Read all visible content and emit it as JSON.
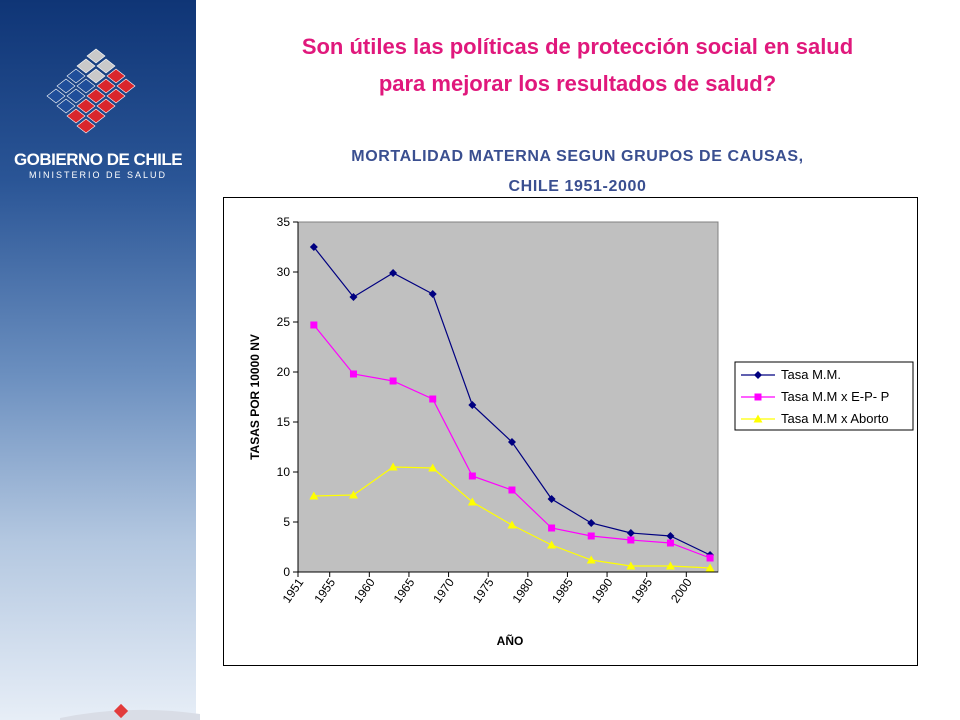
{
  "branding": {
    "government": "GOBIERNO DE CHILE",
    "ministry": "MINISTERIO DE SALUD"
  },
  "title": {
    "line1": "Son útiles las políticas de protección social en salud",
    "line2": "para mejorar los resultados de salud?"
  },
  "colors": {
    "title": "#e0187c",
    "chart_title": "#3a4f90",
    "plot_background": "#c0c0c0"
  },
  "chart_data": {
    "type": "line",
    "title_line1": "MORTALIDAD MATERNA SEGUN GRUPOS DE CAUSAS,",
    "title_line2": "CHILE 1951-2000",
    "xlabel": "AÑO",
    "ylabel": "TASAS POR 10000 NV",
    "ylim": [
      0,
      35
    ],
    "yticks": [
      0,
      5,
      10,
      15,
      20,
      25,
      30,
      35
    ],
    "xlim": [
      1951,
      2004
    ],
    "xticks": [
      "1951",
      "1955",
      "1960",
      "1965",
      "1970",
      "1975",
      "1980",
      "1985",
      "1990",
      "1995",
      "2000"
    ],
    "grid": false,
    "legend_position": "right",
    "x": [
      1953,
      1958,
      1963,
      1968,
      1973,
      1978,
      1983,
      1988,
      1993,
      1998,
      2003
    ],
    "series": [
      {
        "name": "Tasa M.M.",
        "color": "#000080",
        "marker": "diamond",
        "values": [
          32.5,
          27.5,
          29.9,
          27.8,
          16.7,
          13.0,
          7.3,
          4.9,
          3.9,
          3.6,
          1.7
        ]
      },
      {
        "name": "Tasa M.M x E-P- P",
        "color": "#ff00ff",
        "marker": "square",
        "values": [
          24.7,
          19.8,
          19.1,
          17.3,
          9.6,
          8.2,
          4.4,
          3.6,
          3.2,
          2.9,
          1.4
        ]
      },
      {
        "name": "Tasa M.M x Aborto",
        "color": "#ffff00",
        "marker": "triangle",
        "values": [
          7.6,
          7.7,
          10.5,
          10.4,
          7.0,
          4.7,
          2.7,
          1.2,
          0.6,
          0.6,
          0.4
        ]
      }
    ]
  }
}
